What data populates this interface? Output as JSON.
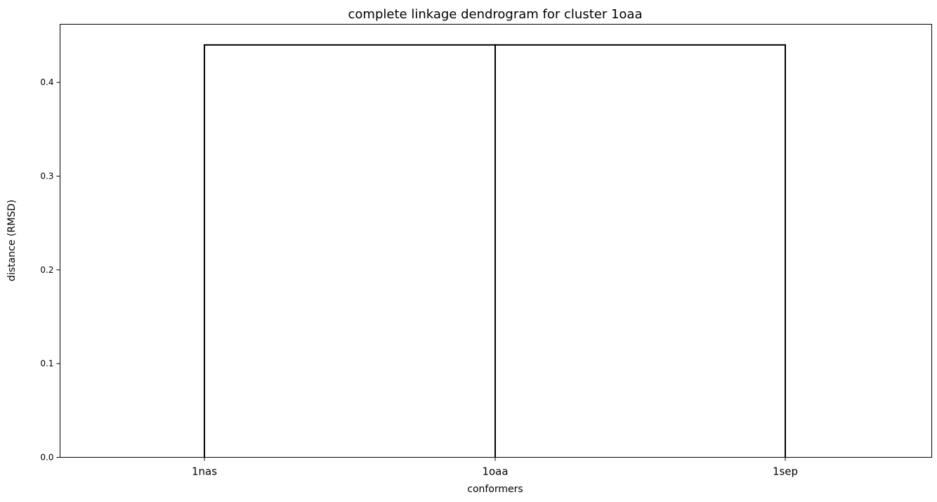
{
  "chart_data": {
    "type": "dendrogram",
    "title": "complete linkage dendrogram for cluster 1oaa",
    "xlabel": "conformers",
    "ylabel": "distance (RMSD)",
    "leaves": [
      "1nas",
      "1oaa",
      "1sep"
    ],
    "merges": [
      {
        "left": 1,
        "right": 2,
        "height": 0.44
      },
      {
        "left": 0,
        "right": 1,
        "height": 0.44
      }
    ],
    "ylim": [
      0,
      0.462
    ],
    "yticks": [
      0.0,
      0.1,
      0.2,
      0.3,
      0.4
    ],
    "ytick_labels": [
      "0.0",
      "0.1",
      "0.2",
      "0.3",
      "0.4"
    ],
    "grid": false,
    "link_color": "#000000"
  }
}
